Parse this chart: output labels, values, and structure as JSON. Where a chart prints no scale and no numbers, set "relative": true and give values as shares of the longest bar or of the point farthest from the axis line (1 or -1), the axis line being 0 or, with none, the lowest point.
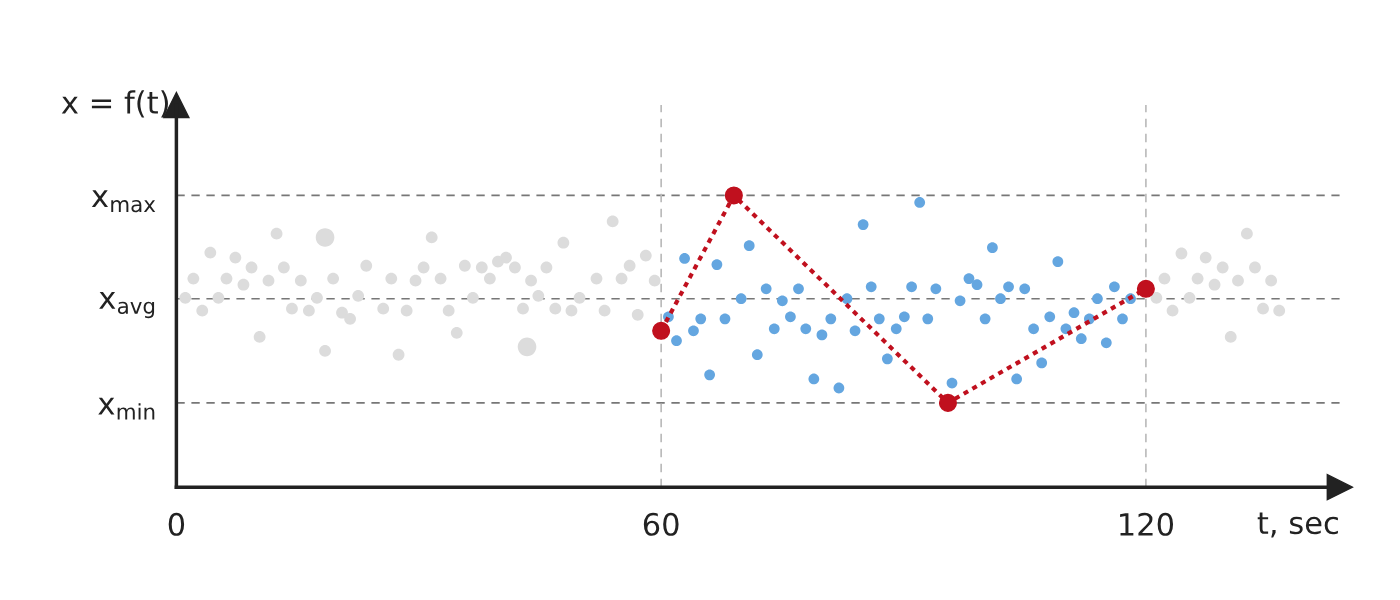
{
  "chart_data": {
    "type": "scatter",
    "relative": true,
    "xlabel": "t, sec",
    "ylabel": "x = f(t)",
    "xlim": [
      0,
      144
    ],
    "xticks": [
      0,
      60,
      120
    ],
    "grid": false,
    "marker": "circle",
    "series": [
      {
        "type": "bubble",
        "color": "#dcdcdc",
        "x": [
          1.1,
          2.1,
          3.2,
          4.2,
          5.2,
          6.2,
          7.3,
          8.3,
          9.3,
          10.3,
          11.4,
          12.4,
          13.3,
          14.3,
          15.4,
          16.4,
          17.4,
          18.4,
          18.4,
          19.4,
          20.5,
          21.5,
          22.5,
          23.5,
          25.6,
          26.6,
          27.5,
          28.5,
          29.6,
          30.6,
          31.6,
          32.7,
          33.7,
          34.7,
          35.7,
          36.7,
          37.8,
          38.8,
          39.8,
          40.8,
          41.9,
          42.9,
          43.4,
          43.9,
          44.8,
          45.8,
          46.9,
          47.9,
          48.9,
          49.9,
          52.0,
          53.0,
          54.0,
          55.1,
          56.1,
          57.1,
          58.1,
          59.2,
          121.3,
          122.3,
          123.3,
          124.4,
          125.4,
          126.4,
          127.4,
          128.5,
          129.5,
          130.5,
          131.4,
          132.5,
          133.5,
          134.5,
          135.5,
          136.5
        ],
        "values": [
          0.649,
          0.715,
          0.605,
          0.804,
          0.649,
          0.715,
          0.787,
          0.694,
          0.753,
          0.515,
          0.708,
          0.869,
          0.753,
          0.612,
          0.708,
          0.605,
          0.649,
          0.856,
          0.467,
          0.715,
          0.598,
          0.577,
          0.656,
          0.759,
          0.612,
          0.715,
          0.454,
          0.605,
          0.708,
          0.753,
          0.856,
          0.715,
          0.605,
          0.529,
          0.759,
          0.649,
          0.753,
          0.715,
          0.773,
          0.787,
          0.753,
          0.612,
          0.481,
          0.708,
          0.656,
          0.753,
          0.612,
          0.838,
          0.605,
          0.649,
          0.715,
          0.605,
          0.911,
          0.715,
          0.759,
          0.591,
          0.794,
          0.708,
          0.649,
          0.715,
          0.605,
          0.801,
          0.649,
          0.715,
          0.787,
          0.694,
          0.753,
          0.515,
          0.708,
          0.869,
          0.753,
          0.612,
          0.708,
          0.605
        ],
        "sizes": [
          0.4,
          0.4,
          0.4,
          0.4,
          0.4,
          0.4,
          0.4,
          0.4,
          0.4,
          0.4,
          0.4,
          0.4,
          0.4,
          0.4,
          0.4,
          0.4,
          0.4,
          1,
          0.4,
          0.4,
          0.4,
          0.4,
          0.4,
          0.4,
          0.4,
          0.4,
          0.4,
          0.4,
          0.4,
          0.4,
          0.4,
          0.4,
          0.4,
          0.4,
          0.4,
          0.4,
          0.4,
          0.4,
          0.4,
          0.4,
          0.4,
          0.4,
          1,
          0.4,
          0.4,
          0.4,
          0.4,
          0.4,
          0.4,
          0.4,
          0.4,
          0.4,
          0.4,
          0.4,
          0.4,
          0.4,
          0.4,
          0.4,
          0.4,
          0.4,
          0.4,
          0.4,
          0.4,
          0.4,
          0.4,
          0.4,
          0.4,
          0.4,
          0.4,
          0.4,
          0.4,
          0.4,
          0.4,
          0.4
        ]
      },
      {
        "color": "#64a6e0",
        "x": [
          60.9,
          61.9,
          62.9,
          64.0,
          64.9,
          66.0,
          66.9,
          67.9,
          69.9,
          70.9,
          71.9,
          73.0,
          74.0,
          75.0,
          76.0,
          77.0,
          77.9,
          78.9,
          79.9,
          81.0,
          82.0,
          83.0,
          84.0,
          85.0,
          86.0,
          87.0,
          88.0,
          89.1,
          90.1,
          91.0,
          92.0,
          93.0,
          94.0,
          96.0,
          97.0,
          98.1,
          99.1,
          100.1,
          101.0,
          102.0,
          103.0,
          104.0,
          105.0,
          106.1,
          107.1,
          108.1,
          109.1,
          110.1,
          111.1,
          112.0,
          113.0,
          114.0,
          115.1,
          116.1,
          117.1,
          118.1
        ],
        "values": [
          0.584,
          0.502,
          0.784,
          0.536,
          0.577,
          0.385,
          0.763,
          0.577,
          0.646,
          0.828,
          0.454,
          0.68,
          0.543,
          0.639,
          0.584,
          0.68,
          0.543,
          0.371,
          0.522,
          0.577,
          0.34,
          0.646,
          0.536,
          0.9,
          0.687,
          0.577,
          0.44,
          0.543,
          0.584,
          0.687,
          0.976,
          0.577,
          0.68,
          0.357,
          0.639,
          0.715,
          0.694,
          0.577,
          0.821,
          0.646,
          0.687,
          0.371,
          0.68,
          0.543,
          0.426,
          0.584,
          0.773,
          0.543,
          0.598,
          0.509,
          0.577,
          0.646,
          0.495,
          0.687,
          0.577,
          0.646
        ]
      },
      {
        "type": "line",
        "color": "#c0101e",
        "line_style": "dotted",
        "marker": "circle",
        "x": [
          60,
          69,
          95.5,
          120
        ],
        "values": [
          0.536,
          1,
          0.289,
          0.68
        ]
      }
    ],
    "ref_lines": [
      {
        "axis": "y",
        "value": 1,
        "label": "x$_{max}$",
        "color": "#777777",
        "line_style": "dashed"
      },
      {
        "axis": "y",
        "value": 0.646,
        "label": "x$_{avg}$",
        "color": "#777777",
        "line_style": "dashed"
      },
      {
        "axis": "y",
        "value": 0.289,
        "label": "x$_{min}$",
        "color": "#777777",
        "line_style": "dashed"
      },
      {
        "axis": "x",
        "value": 60,
        "color": "#bbbbbb",
        "line_style": "dashed"
      },
      {
        "axis": "x",
        "value": 120,
        "color": "#bbbbbb",
        "line_style": "dashed"
      }
    ]
  }
}
